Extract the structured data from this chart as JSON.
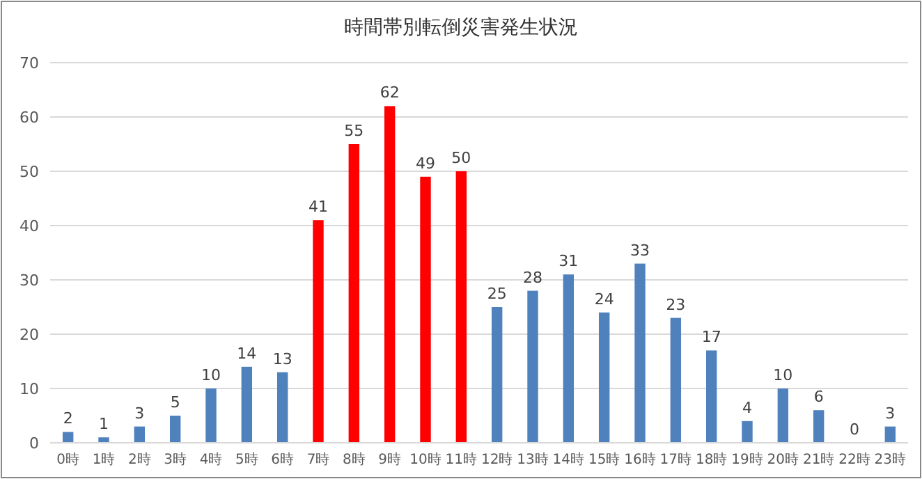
{
  "chart_data": {
    "type": "bar",
    "title": "時間帯別転倒災害発生状況",
    "categories": [
      "0時",
      "1時",
      "2時",
      "3時",
      "4時",
      "5時",
      "6時",
      "7時",
      "8時",
      "9時",
      "10時",
      "11時",
      "12時",
      "13時",
      "14時",
      "15時",
      "16時",
      "17時",
      "18時",
      "19時",
      "20時",
      "21時",
      "22時",
      "23時"
    ],
    "values": [
      2,
      1,
      3,
      5,
      10,
      14,
      13,
      41,
      55,
      62,
      49,
      50,
      25,
      28,
      31,
      24,
      33,
      23,
      17,
      4,
      10,
      6,
      0,
      3
    ],
    "colors": [
      "#4f81bd",
      "#4f81bd",
      "#4f81bd",
      "#4f81bd",
      "#4f81bd",
      "#4f81bd",
      "#4f81bd",
      "#ff0000",
      "#ff0000",
      "#ff0000",
      "#ff0000",
      "#ff0000",
      "#4f81bd",
      "#4f81bd",
      "#4f81bd",
      "#4f81bd",
      "#4f81bd",
      "#4f81bd",
      "#4f81bd",
      "#4f81bd",
      "#4f81bd",
      "#4f81bd",
      "#4f81bd",
      "#4f81bd"
    ],
    "ylim": [
      0,
      70
    ],
    "yticks": [
      0,
      10,
      20,
      30,
      40,
      50,
      60,
      70
    ],
    "grid": "y",
    "data_labels": true
  }
}
